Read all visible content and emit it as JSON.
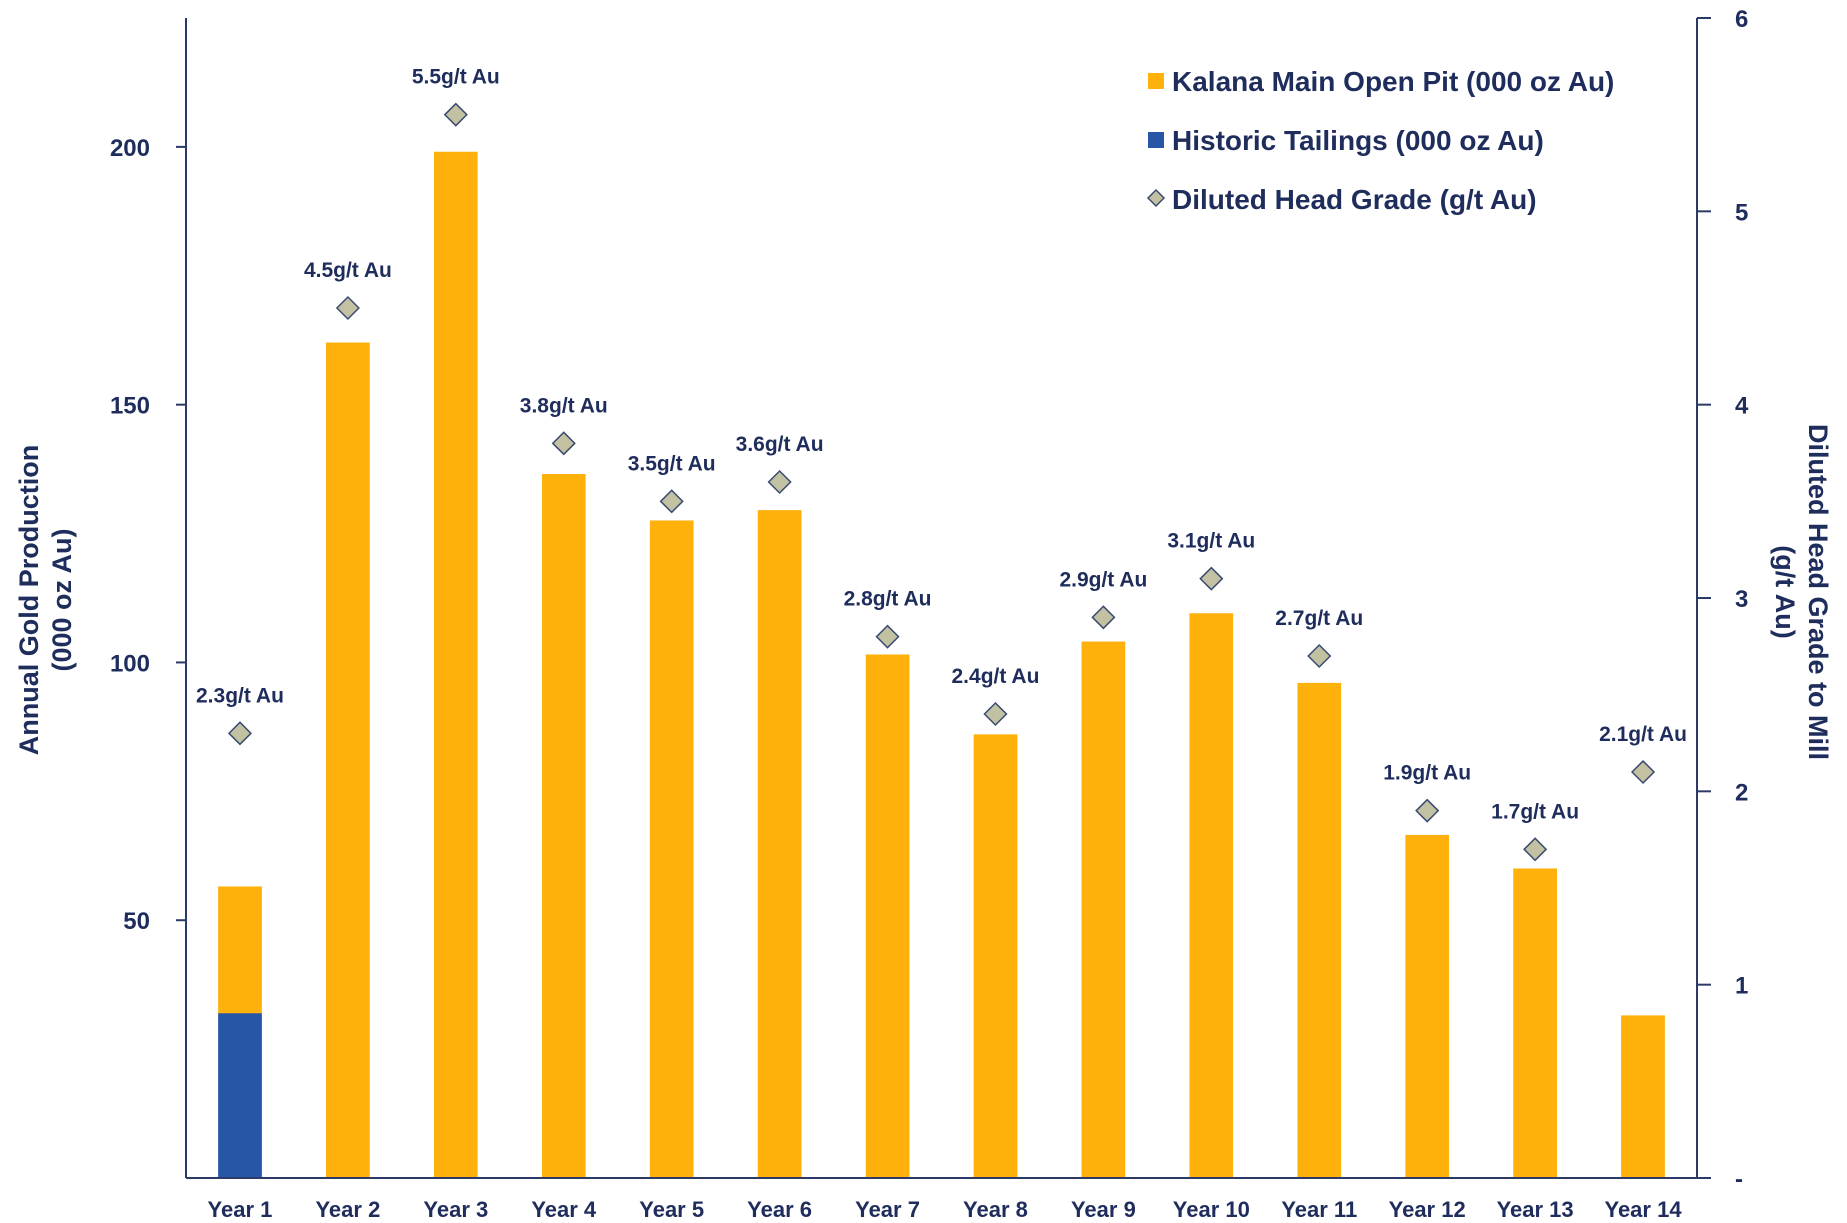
{
  "chart_data": {
    "type": "bar",
    "stacked": true,
    "categories": [
      "Year 1",
      "Year 2",
      "Year 3",
      "Year 4",
      "Year 5",
      "Year 6",
      "Year 7",
      "Year 8",
      "Year 9",
      "Year 10",
      "Year 11",
      "Year 12",
      "Year 13",
      "Year 14"
    ],
    "series": [
      {
        "name": "Historic Tailings (000 oz Au)",
        "kind": "bar",
        "axis": "left",
        "color": "#2856a6",
        "values": [
          32,
          0,
          0,
          0,
          0,
          0,
          0,
          0,
          0,
          0,
          0,
          0,
          0,
          0
        ]
      },
      {
        "name": "Kalana Main Open Pit (000 oz Au)",
        "kind": "bar",
        "axis": "left",
        "color": "#fdb10a",
        "values": [
          24.5,
          162,
          199,
          136.5,
          127.5,
          129.5,
          101.5,
          86,
          104,
          109.5,
          96,
          66.5,
          60,
          31.5
        ]
      },
      {
        "name": "Diluted Head Grade (g/t Au)",
        "kind": "scatter",
        "marker": "diamond",
        "axis": "right",
        "color": "#c2c2a3",
        "values": [
          2.3,
          4.5,
          5.5,
          3.8,
          3.5,
          3.6,
          2.8,
          2.4,
          2.9,
          3.1,
          2.7,
          1.9,
          1.7,
          2.1
        ],
        "labels": [
          "2.3g/t Au",
          "4.5g/t Au",
          "5.5g/t Au",
          "3.8g/t Au",
          "3.5g/t Au",
          "3.6g/t Au",
          "2.8g/t Au",
          "2.4g/t Au",
          "2.9g/t Au",
          "3.1g/t Au",
          "2.7g/t Au",
          "1.9g/t Au",
          "1.7g/t Au",
          "2.1g/t Au"
        ]
      }
    ],
    "ylabel": [
      "Annual Gold Production",
      "(000 oz Au)"
    ],
    "y2label": [
      "Diluted Head Grade to Mill",
      "(g/t Au)"
    ],
    "ylim": [
      0,
      225
    ],
    "y2lim": [
      0,
      6
    ],
    "yticks": [
      50,
      100,
      150,
      200
    ],
    "y2ticks": [
      0,
      1,
      2,
      3,
      4,
      5,
      6
    ],
    "y2ticklabels": [
      "-",
      "1",
      "2",
      "3",
      "4",
      "5",
      "6"
    ],
    "legend": {
      "position": "top-right",
      "items": [
        "Kalana Main Open Pit (000 oz Au)",
        "Historic Tailings (000 oz Au)",
        "Diluted Head Grade (g/t Au)"
      ]
    },
    "grid": false,
    "colors": {
      "text": "#1f2d5c",
      "axis": "#2b3a67"
    }
  }
}
